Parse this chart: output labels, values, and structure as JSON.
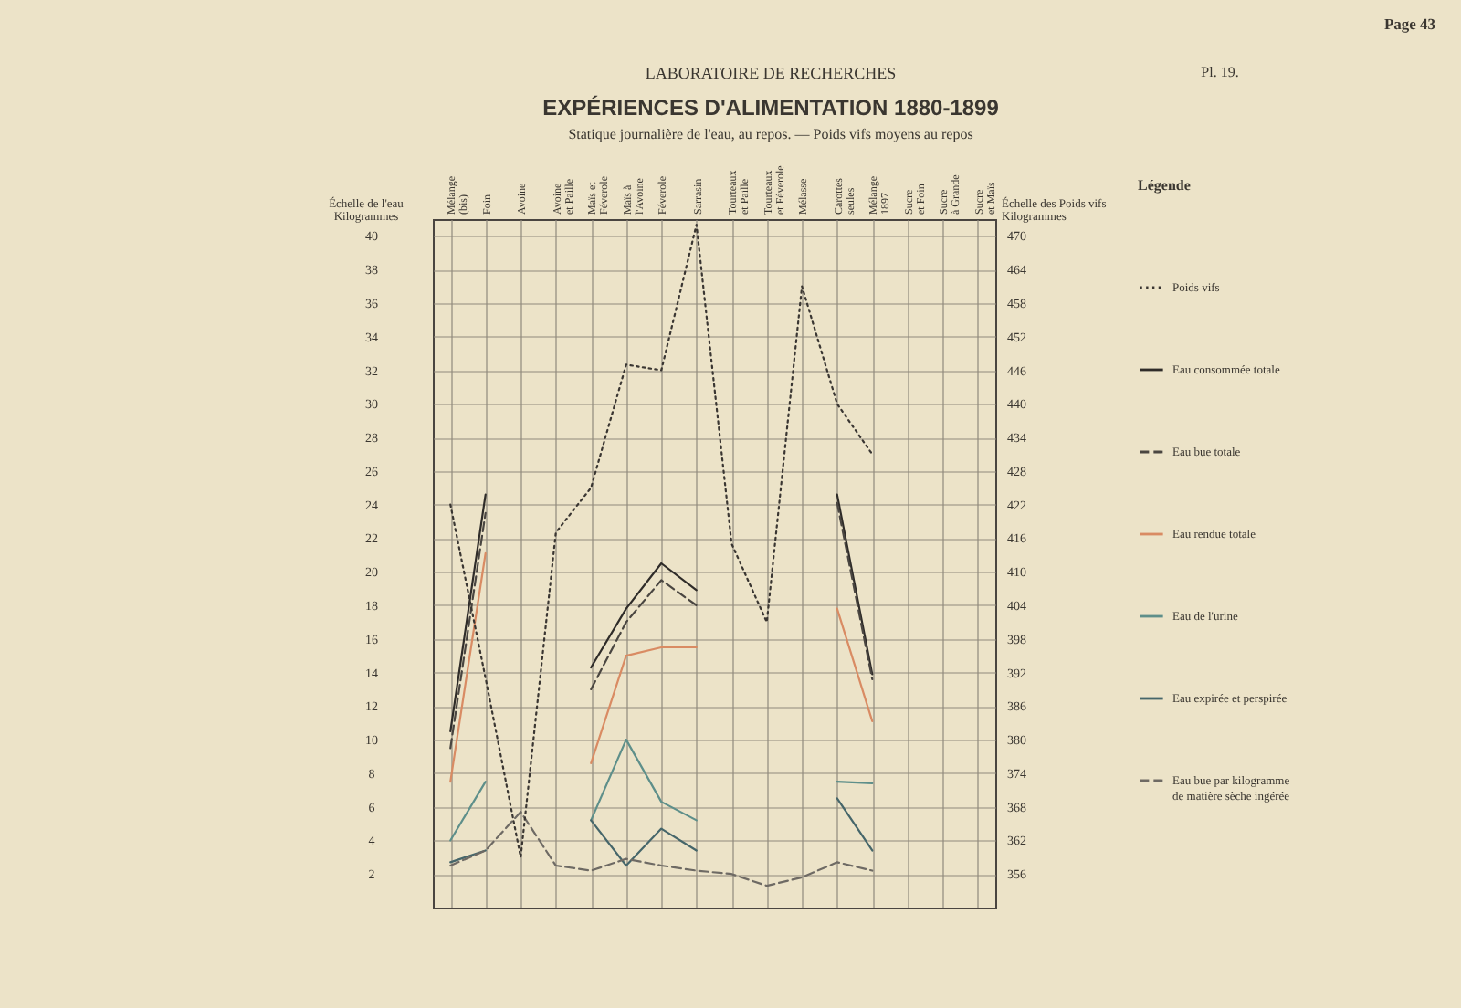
{
  "chart_data": {
    "type": "line",
    "title": "EXPÉRIENCES D'ALIMENTATION 1880-1899",
    "subtitle": "Statique journalière de l'eau, au repos. — Poids vifs moyens au repos",
    "ylabel": "Échelle de l'eau\nKilogrammes",
    "y2label": "Échelle des Poids vifs\nKilogrammes",
    "legend_title": "Légende",
    "annotations": [
      "LABORATOIRE DE RECHERCHES",
      "Pl. 19.",
      "Page 43"
    ],
    "categories": [
      "Mélange\n(bis)",
      "Foin",
      "Avoine",
      "Avoine\net Paille",
      "Maïs et\nFéverole",
      "Maïs à\nl'Avoine",
      "Féverole",
      "Sarrasin",
      "Tourteaux\net Paille",
      "Tourteaux\net Féverole",
      "Mélasse",
      "Carottes\nseules",
      "Mélange\n1897",
      "Sucre\net Foin",
      "Sucre\nà Grande",
      "Sucre\net Maïs"
    ],
    "series": [
      {
        "name": "Poids vifs",
        "color": "#3a3632",
        "line_style": "dotted",
        "axis": "y2",
        "values": [
          422,
          391,
          359,
          417,
          425,
          447,
          446,
          472,
          415,
          401,
          461,
          440,
          431,
          null,
          null,
          null
        ]
      },
      {
        "name": "Eau consommée totale",
        "color": "#2f2c29",
        "line_style": "solid",
        "values": [
          10.5,
          24.6,
          null,
          null,
          14.3,
          17.8,
          20.5,
          18.9,
          null,
          null,
          null,
          24.6,
          13.9,
          null,
          null,
          null
        ]
      },
      {
        "name": "Eau bue totale",
        "color": "#4a4641",
        "line_style": "dashed",
        "values": [
          9.5,
          23.5,
          null,
          null,
          13.0,
          17.0,
          19.5,
          18.0,
          null,
          null,
          null,
          24.1,
          13.6,
          null,
          null,
          null
        ]
      },
      {
        "name": "Eau rendue totale",
        "color": "#d98b63",
        "line_style": "solid",
        "values": [
          7.5,
          21.1,
          null,
          null,
          8.6,
          15.0,
          15.5,
          15.5,
          null,
          null,
          null,
          17.8,
          11.1,
          null,
          null,
          null
        ]
      },
      {
        "name": "Eau de l'urine",
        "color": "#5e8f8a",
        "line_style": "solid",
        "values": [
          4.0,
          7.5,
          null,
          null,
          5.2,
          10.0,
          6.3,
          5.2,
          null,
          null,
          null,
          7.5,
          7.4,
          null,
          null,
          null
        ]
      },
      {
        "name": "Eau expirée et perspirée",
        "color": "#46666a",
        "line_style": "solid",
        "values": [
          2.7,
          3.4,
          null,
          null,
          5.2,
          2.5,
          4.7,
          3.4,
          null,
          null,
          null,
          6.5,
          3.4,
          null,
          null,
          null
        ]
      },
      {
        "name": "Eau bue par kilogramme\nde matière sèche ingérée",
        "color": "#6e6a64",
        "line_style": "dashed",
        "values": [
          2.5,
          3.4,
          5.7,
          2.5,
          2.2,
          2.9,
          2.5,
          2.2,
          2.0,
          1.3,
          1.8,
          2.7,
          2.2,
          null,
          null,
          null
        ]
      }
    ],
    "ylim": [
      0,
      41
    ],
    "yticks": [
      2,
      4,
      6,
      8,
      10,
      12,
      14,
      16,
      18,
      20,
      22,
      24,
      26,
      28,
      30,
      32,
      34,
      36,
      38,
      40
    ],
    "y2lim": [
      350,
      473
    ],
    "y2ticks": [
      356,
      362,
      368,
      374,
      380,
      386,
      392,
      398,
      404,
      410,
      416,
      422,
      428,
      434,
      440,
      446,
      452,
      458,
      464,
      470
    ],
    "grid": true,
    "legend": "right"
  }
}
